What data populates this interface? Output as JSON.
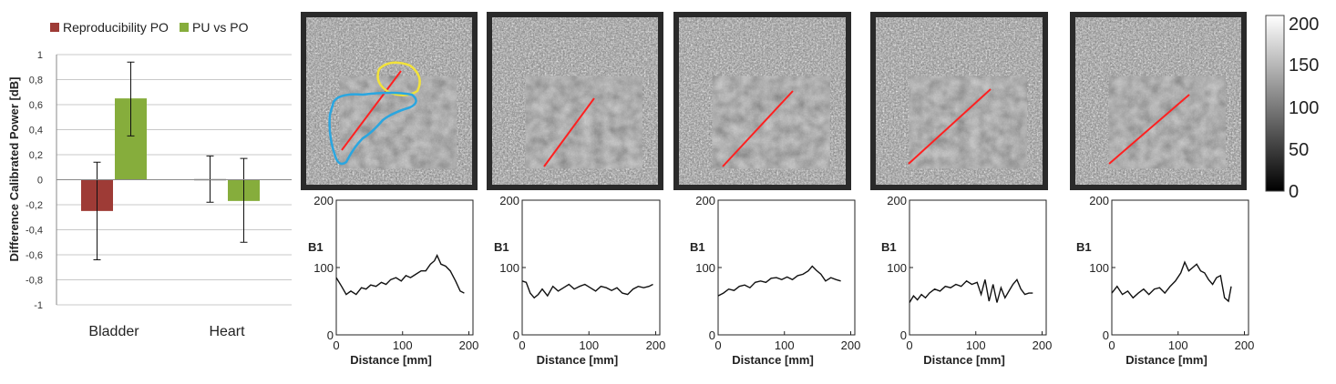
{
  "bar_chart": {
    "type": "bar",
    "ylabel": "Difference Calibrated Power [dB]",
    "ylim": [
      -1,
      1
    ],
    "y_ticks": [
      "1",
      "0,8",
      "0,6",
      "0,4",
      "0,2",
      "0",
      "-0,2",
      "-0,4",
      "-0,6",
      "-0,8",
      "-1"
    ],
    "y_tick_values": [
      1,
      0.8,
      0.6,
      0.4,
      0.2,
      0,
      -0.2,
      -0.4,
      -0.6,
      -0.8,
      -1
    ],
    "categories": [
      "Bladder",
      "Heart"
    ],
    "series": [
      {
        "name": "Reproducibility PO",
        "color": "#9e3b36",
        "values": [
          -0.25,
          0.0
        ],
        "err_low": [
          -0.64,
          -0.18
        ],
        "err_high": [
          0.14,
          0.19
        ]
      },
      {
        "name": "PU vs PO",
        "color": "#86ad3c",
        "values": [
          0.65,
          -0.17
        ],
        "err_low": [
          0.35,
          -0.5
        ],
        "err_high": [
          0.94,
          0.17
        ]
      }
    ],
    "legend_position": "top"
  },
  "colorbar": {
    "ticks": [
      "200",
      "150",
      "100",
      "50",
      "0"
    ],
    "tick_values": [
      200,
      150,
      100,
      50,
      0
    ],
    "range": [
      0,
      200
    ]
  },
  "map_images": [
    {
      "line_color": "#ff2020",
      "rois": [
        {
          "name": "yellow-roi",
          "color": "#f2e23a"
        },
        {
          "name": "blue-roi",
          "color": "#2aa6e0"
        }
      ]
    },
    {
      "line_color": "#ff2020",
      "rois": []
    },
    {
      "line_color": "#ff2020",
      "rois": []
    },
    {
      "line_color": "#ff2020",
      "rois": []
    },
    {
      "line_color": "#ff2020",
      "rois": []
    }
  ],
  "chart_data": [
    {
      "type": "line",
      "ylabel": "B1",
      "xlabel": "Distance [mm]",
      "xlim": [
        0,
        200
      ],
      "ylim": [
        0,
        200
      ],
      "x_ticks": [
        "0",
        "100",
        "200"
      ],
      "y_ticks": [
        "200",
        "100",
        "0"
      ],
      "x": [
        0,
        8,
        15,
        22,
        30,
        38,
        45,
        52,
        60,
        68,
        75,
        82,
        90,
        98,
        105,
        112,
        120,
        128,
        135,
        142,
        148,
        152,
        158,
        165,
        172,
        180,
        187,
        193
      ],
      "y": [
        85,
        72,
        60,
        65,
        60,
        70,
        68,
        74,
        72,
        78,
        75,
        82,
        85,
        80,
        88,
        85,
        90,
        95,
        95,
        105,
        110,
        118,
        105,
        102,
        95,
        80,
        65,
        62
      ]
    },
    {
      "type": "line",
      "ylabel": "B1",
      "xlabel": "Distance [mm]",
      "xlim": [
        0,
        200
      ],
      "ylim": [
        0,
        200
      ],
      "x_ticks": [
        "0",
        "100",
        "200"
      ],
      "y_ticks": [
        "200",
        "100",
        "0"
      ],
      "x": [
        0,
        6,
        12,
        18,
        24,
        30,
        38,
        46,
        54,
        62,
        70,
        78,
        86,
        94,
        102,
        110,
        118,
        126,
        134,
        142,
        150,
        158,
        166,
        174,
        182,
        190,
        196
      ],
      "y": [
        80,
        78,
        62,
        55,
        60,
        68,
        58,
        72,
        65,
        70,
        75,
        68,
        72,
        75,
        70,
        65,
        72,
        70,
        66,
        70,
        62,
        60,
        68,
        72,
        70,
        72,
        75
      ]
    },
    {
      "type": "line",
      "ylabel": "B1",
      "xlabel": "Distance [mm]",
      "xlim": [
        0,
        200
      ],
      "ylim": [
        0,
        200
      ],
      "x_ticks": [
        "0",
        "100",
        "200"
      ],
      "y_ticks": [
        "200",
        "100",
        "0"
      ],
      "x": [
        0,
        8,
        16,
        24,
        32,
        40,
        48,
        56,
        64,
        72,
        80,
        88,
        96,
        104,
        112,
        120,
        128,
        136,
        142,
        148,
        155,
        162,
        170,
        178,
        185
      ],
      "y": [
        58,
        62,
        68,
        66,
        72,
        74,
        70,
        78,
        80,
        78,
        84,
        85,
        82,
        86,
        82,
        88,
        90,
        95,
        102,
        96,
        90,
        80,
        85,
        82,
        80
      ]
    },
    {
      "type": "line",
      "ylabel": "B1",
      "xlabel": "Distance [mm]",
      "xlim": [
        0,
        200
      ],
      "ylim": [
        0,
        200
      ],
      "x_ticks": [
        "0",
        "100",
        "200"
      ],
      "y_ticks": [
        "200",
        "100",
        "0"
      ],
      "x": [
        0,
        6,
        12,
        18,
        24,
        30,
        38,
        46,
        54,
        62,
        70,
        78,
        86,
        94,
        102,
        108,
        114,
        120,
        126,
        132,
        138,
        144,
        150,
        156,
        162,
        168,
        174,
        180,
        186
      ],
      "y": [
        48,
        58,
        52,
        60,
        55,
        62,
        68,
        65,
        72,
        70,
        75,
        72,
        80,
        75,
        78,
        60,
        82,
        50,
        75,
        48,
        70,
        55,
        65,
        75,
        82,
        68,
        60,
        62,
        62
      ]
    },
    {
      "type": "line",
      "ylabel": "B1",
      "xlabel": "Distance [mm]",
      "xlim": [
        0,
        200
      ],
      "ylim": [
        0,
        200
      ],
      "x_ticks": [
        "0",
        "100",
        "200"
      ],
      "y_ticks": [
        "200",
        "100",
        "0"
      ],
      "x": [
        0,
        8,
        16,
        24,
        32,
        40,
        48,
        56,
        64,
        72,
        80,
        88,
        96,
        104,
        110,
        116,
        122,
        128,
        134,
        140,
        146,
        152,
        158,
        164,
        170,
        176,
        180
      ],
      "y": [
        62,
        72,
        60,
        65,
        55,
        62,
        68,
        60,
        68,
        70,
        62,
        72,
        80,
        92,
        108,
        95,
        100,
        105,
        95,
        92,
        82,
        75,
        85,
        88,
        55,
        50,
        72
      ]
    }
  ]
}
